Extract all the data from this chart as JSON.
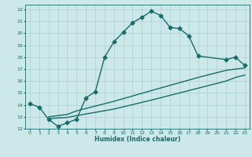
{
  "xlabel": "Humidex (Indice chaleur)",
  "bg_color": "#cce8e8",
  "line_color": "#1a6b6b",
  "grid_color": "#aacfcf",
  "xlim": [
    -0.5,
    23.5
  ],
  "ylim": [
    12,
    22.4
  ],
  "xticks": [
    0,
    1,
    2,
    3,
    4,
    5,
    6,
    7,
    8,
    9,
    10,
    11,
    12,
    13,
    14,
    15,
    16,
    17,
    18,
    19,
    20,
    21,
    22,
    23
  ],
  "yticks": [
    12,
    13,
    14,
    15,
    16,
    17,
    18,
    19,
    20,
    21,
    22
  ],
  "curve1_x": [
    0,
    1,
    2,
    3,
    4,
    5,
    6,
    7,
    8,
    9,
    10,
    11,
    12,
    13,
    14,
    15,
    16,
    17,
    18,
    21,
    22,
    23
  ],
  "curve1_y": [
    14.1,
    13.8,
    12.8,
    12.2,
    12.5,
    12.8,
    14.6,
    15.1,
    18.0,
    19.3,
    20.1,
    20.9,
    21.35,
    21.85,
    21.5,
    20.5,
    20.4,
    19.8,
    18.1,
    17.8,
    18.0,
    17.3
  ],
  "curve2_x": [
    2,
    4,
    5,
    9,
    13,
    18,
    21,
    22,
    23
  ],
  "curve2_y": [
    13.0,
    13.2,
    13.5,
    14.3,
    15.2,
    16.3,
    16.9,
    17.0,
    17.1
  ],
  "curve3_x": [
    2,
    4,
    5,
    9,
    13,
    18,
    21,
    22,
    23
  ],
  "curve3_y": [
    12.85,
    12.95,
    13.1,
    13.65,
    14.4,
    15.4,
    16.0,
    16.3,
    16.5
  ],
  "markersize": 2.5,
  "linewidth": 1.0
}
